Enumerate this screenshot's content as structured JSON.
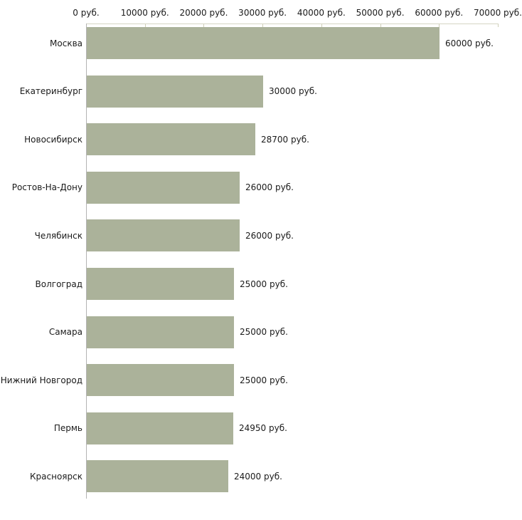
{
  "chart_data": {
    "type": "bar",
    "orientation": "horizontal",
    "title": "",
    "xlabel": "",
    "ylabel": "",
    "xlim": [
      0,
      70000
    ],
    "grid": false,
    "legend": null,
    "categories": [
      "Москва",
      "Екатеринбург",
      "Новосибирск",
      "Ростов-На-Дону",
      "Челябинск",
      "Волгоград",
      "Самара",
      "Нижний Новгород",
      "Пермь",
      "Красноярск"
    ],
    "values": [
      60000,
      30000,
      28700,
      26000,
      26000,
      25000,
      25000,
      25000,
      24950,
      24000
    ],
    "value_labels": [
      "60000 руб.",
      "30000 руб.",
      "28700 руб.",
      "26000 руб.",
      "26000 руб.",
      "25000 руб.",
      "25000 руб.",
      "25000 руб.",
      "24950 руб.",
      "24000 руб."
    ],
    "x_ticks": [
      0,
      10000,
      20000,
      30000,
      40000,
      50000,
      60000,
      70000
    ],
    "x_tick_labels": [
      "0 руб.",
      "10000 руб.",
      "20000 руб.",
      "30000 руб.",
      "40000 руб.",
      "50000 руб.",
      "60000 руб.",
      "70000 руб."
    ],
    "bar_color": "#abb29a",
    "axis_line_color": "#d6d6c4",
    "tick_mark_color": "#cdcdb6",
    "y_axis_line_color": "#b3b3b3",
    "text_color": "#1a1a1a"
  }
}
